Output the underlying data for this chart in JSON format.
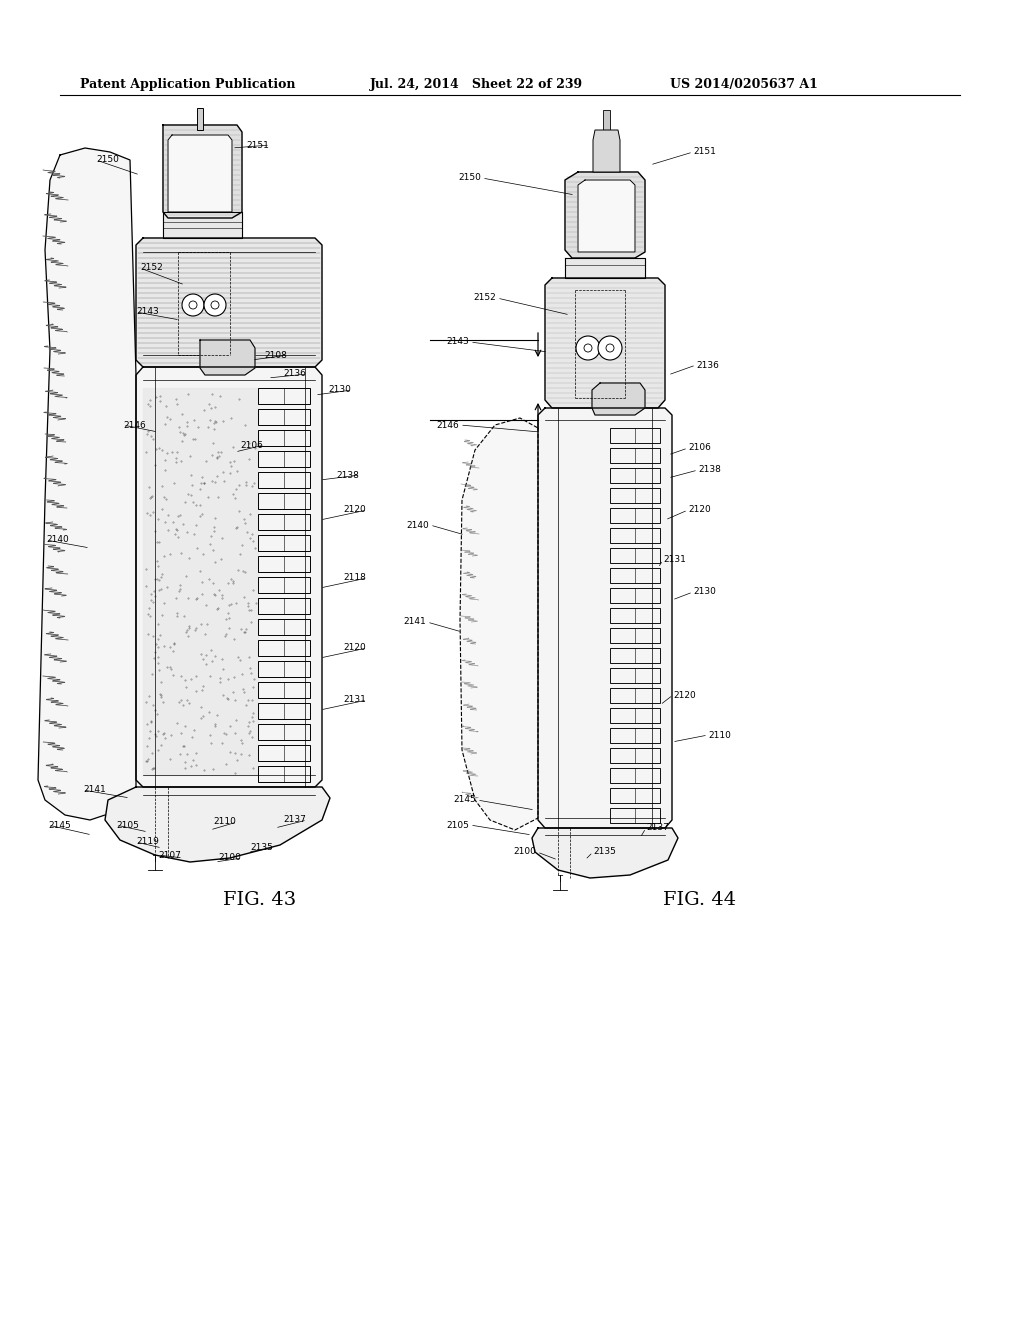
{
  "header_left": "Patent Application Publication",
  "header_mid": "Jul. 24, 2014   Sheet 22 of 239",
  "header_right": "US 2014/0205637 A1",
  "fig43_label": "FIG. 43",
  "fig44_label": "FIG. 44",
  "background": "#ffffff",
  "line_color": "#000000"
}
